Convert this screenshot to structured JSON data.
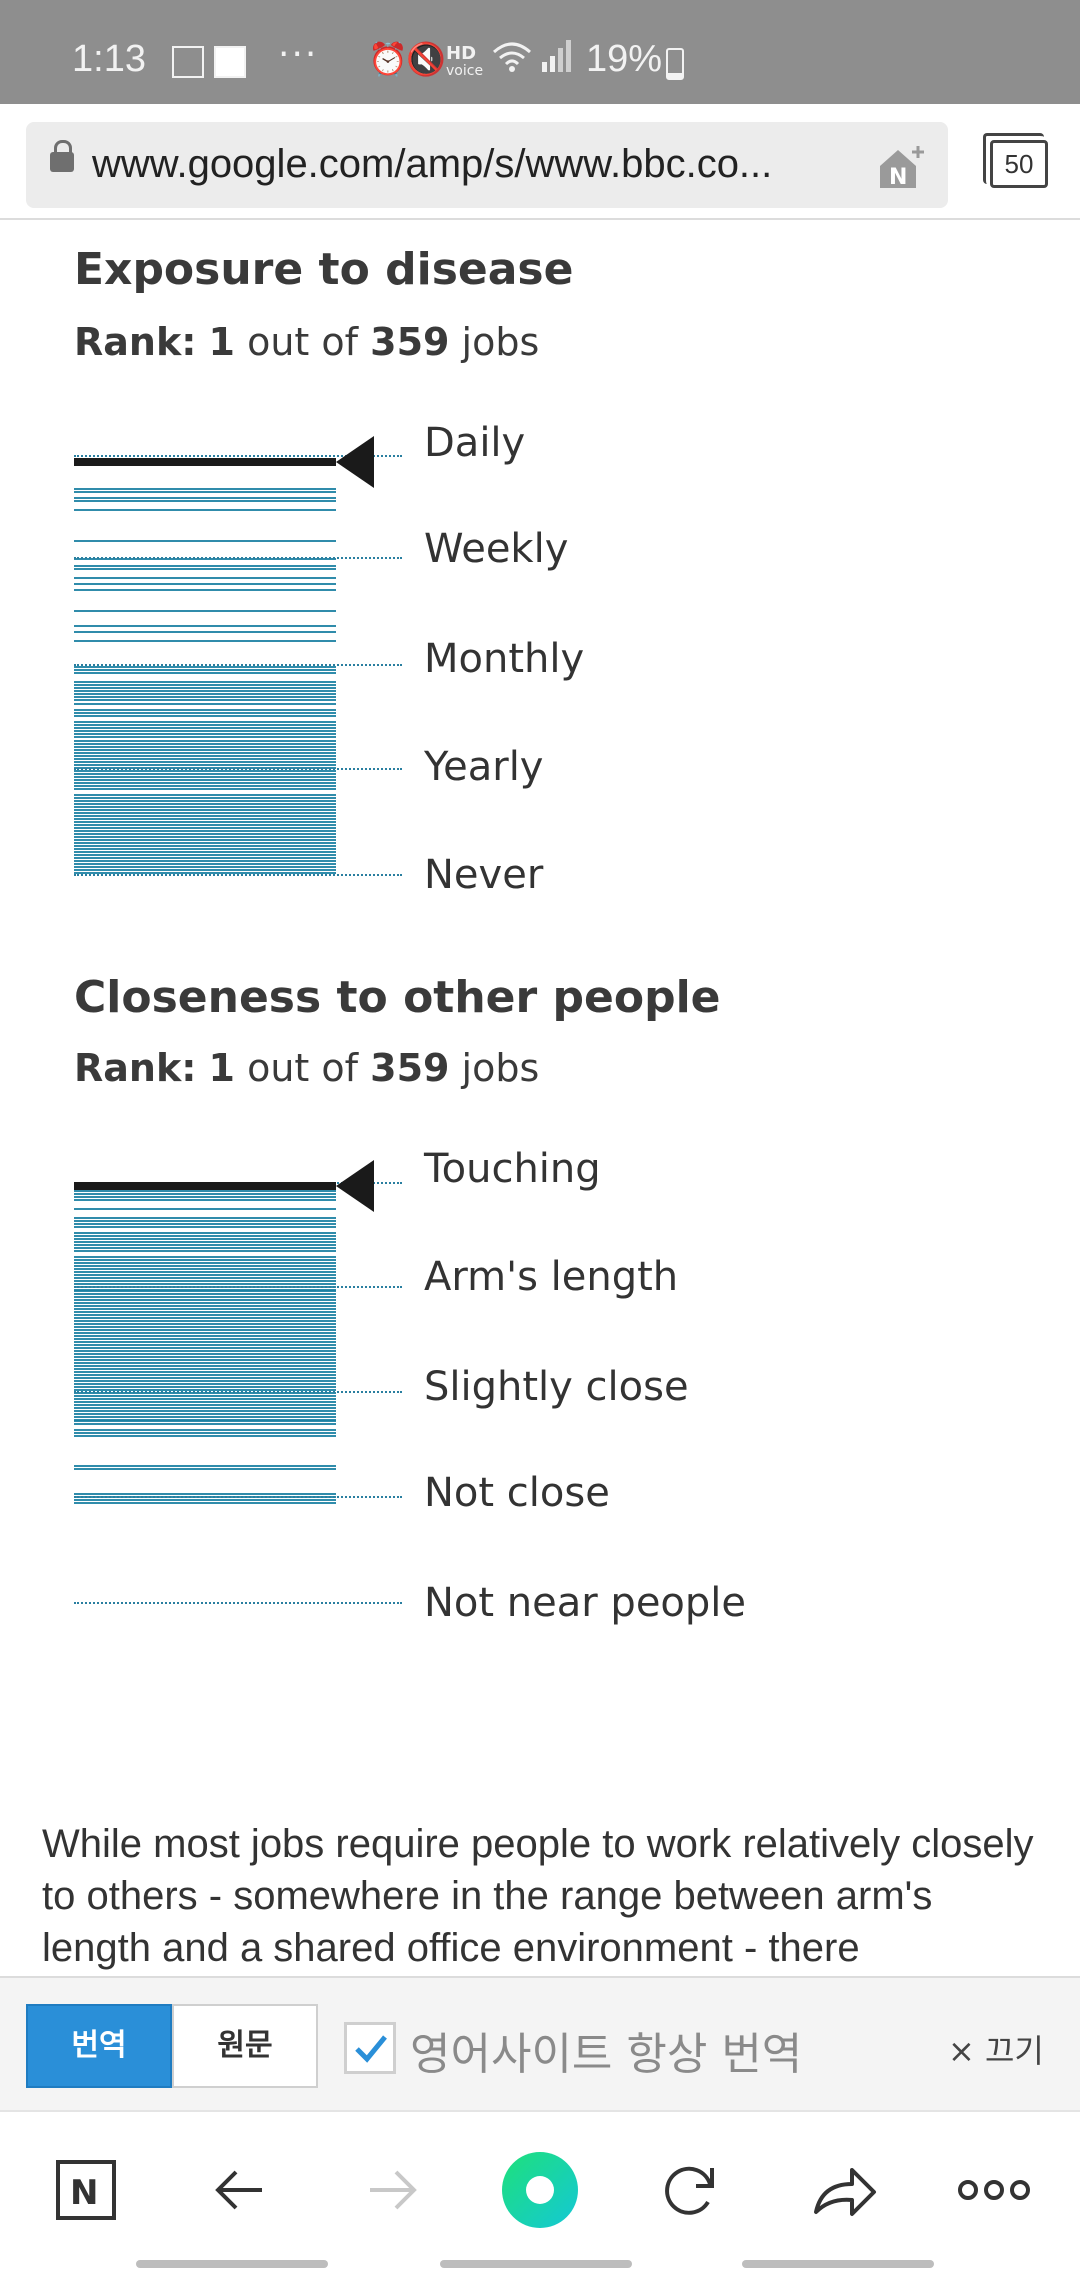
{
  "status_bar": {
    "time": "1:13",
    "more": "···",
    "hd_label": "HD",
    "voice_label": "voice",
    "battery_text": "19%",
    "battery_level": 0.19
  },
  "browser": {
    "url": "www.google.com/amp/s/www.bbc.co...",
    "tab_count": "50"
  },
  "section1": {
    "title": "Exposure to disease",
    "rank_label": "Rank:",
    "rank_value": "1",
    "rank_mid": "out of",
    "rank_total": "359",
    "rank_suffix": "jobs",
    "levels": [
      "Daily",
      "Weekly",
      "Monthly",
      "Yearly",
      "Never"
    ]
  },
  "section2": {
    "title": "Closeness to other people",
    "rank_label": "Rank:",
    "rank_value": "1",
    "rank_mid": "out of",
    "rank_total": "359",
    "rank_suffix": "jobs",
    "levels": [
      "Touching",
      "Arm's length",
      "Slightly close",
      "Not close",
      "Not near people"
    ]
  },
  "article": {
    "text": "While most jobs require people to work relatively closely to others - somewhere in the range between arm's length and a shared office environment - there"
  },
  "translate_bar": {
    "translate_label": "번역",
    "original_label": "원문",
    "always_translate_label": "영어사이트 항상 번역",
    "always_checked": true,
    "close_label": "× 끄기"
  },
  "colors": {
    "bar": "#1a7fa2",
    "marker": "#1a1a1a",
    "accent": "#2a8fd8",
    "status_bg": "#8e8e8e"
  },
  "icons": {
    "nav": [
      "naver-icon",
      "back-icon",
      "forward-icon",
      "green-dot-icon",
      "reload-icon",
      "share-icon",
      "more-icon"
    ]
  }
}
